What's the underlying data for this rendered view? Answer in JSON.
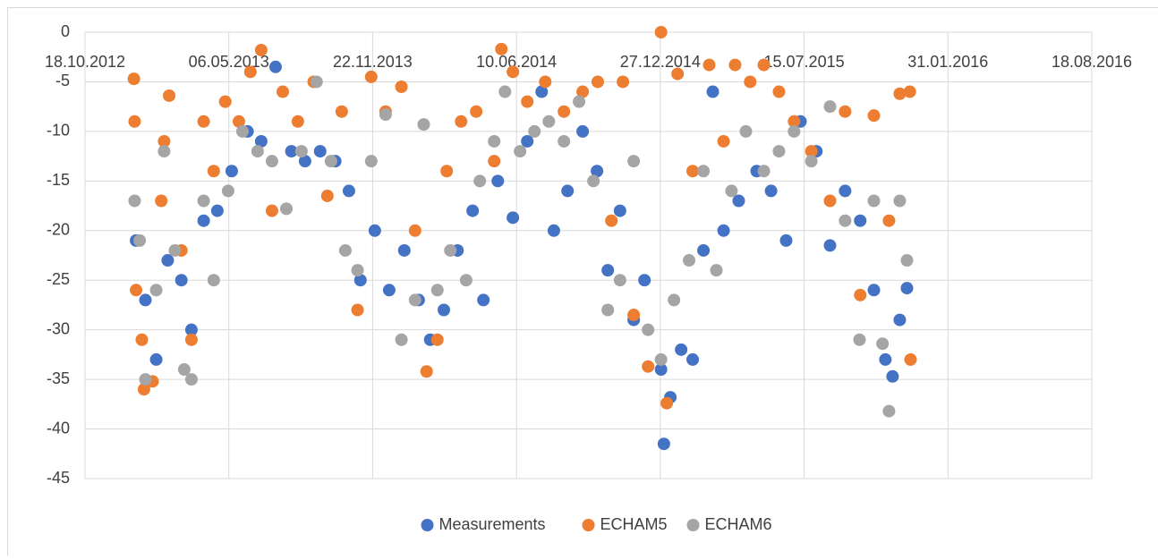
{
  "chart_data": {
    "type": "scatter",
    "xlim": [
      "2012-10-18",
      "2016-08-18"
    ],
    "xticks": [
      {
        "value": "2012-10-18",
        "label": "18.10.2012"
      },
      {
        "value": "2013-05-06",
        "label": "06.05.2013"
      },
      {
        "value": "2013-11-22",
        "label": "22.11.2013"
      },
      {
        "value": "2014-06-10",
        "label": "10.06.2014"
      },
      {
        "value": "2014-12-27",
        "label": "27.12.2014"
      },
      {
        "value": "2015-07-15",
        "label": "15.07.2015"
      },
      {
        "value": "2016-01-31",
        "label": "31.01.2016"
      },
      {
        "value": "2016-08-18",
        "label": "18.08.2016"
      }
    ],
    "ylim": [
      -45,
      0
    ],
    "yticks": [
      0,
      -5,
      -10,
      -15,
      -20,
      -25,
      -30,
      -35,
      -40,
      -45
    ],
    "grid": true,
    "legend": "bottom",
    "series": [
      {
        "name": "Measurements",
        "color": "#4472c4",
        "x": [
          "2012-12-28",
          "2013-01-10",
          "2013-01-25",
          "2013-02-10",
          "2013-03-01",
          "2013-03-15",
          "2013-04-01",
          "2013-04-20",
          "2013-05-10",
          "2013-06-01",
          "2013-06-20",
          "2013-07-10",
          "2013-08-01",
          "2013-08-20",
          "2013-09-10",
          "2013-10-01",
          "2013-10-20",
          "2013-11-05",
          "2013-11-25",
          "2013-12-15",
          "2014-01-05",
          "2014-01-25",
          "2014-02-10",
          "2014-03-01",
          "2014-03-20",
          "2014-04-10",
          "2014-04-25",
          "2014-05-15",
          "2014-06-05",
          "2014-06-25",
          "2014-07-15",
          "2014-08-01",
          "2014-08-20",
          "2014-09-10",
          "2014-09-30",
          "2014-10-15",
          "2014-11-01",
          "2014-11-20",
          "2014-12-05",
          "2014-12-28",
          "2015-01-01",
          "2015-01-10",
          "2015-01-25",
          "2015-02-10",
          "2015-02-25",
          "2015-03-10",
          "2015-03-25",
          "2015-04-15",
          "2015-05-10",
          "2015-05-30",
          "2015-06-20",
          "2015-07-10",
          "2015-08-01",
          "2015-08-20",
          "2015-09-10",
          "2015-10-01",
          "2015-10-20",
          "2015-11-05",
          "2015-11-15",
          "2015-11-25",
          "2015-12-05"
        ],
        "values": [
          -21,
          -27,
          -33,
          -23,
          -25,
          -30,
          -19,
          -18,
          -14,
          -10,
          -11,
          -3.5,
          -12,
          -13,
          -12,
          -13,
          -16,
          -25,
          -20,
          -26,
          -22,
          -27,
          -31,
          -28,
          -22,
          -18,
          -27,
          -15,
          -18.7,
          -11,
          -6,
          -20,
          -16,
          -10,
          -14,
          -24,
          -18,
          -29,
          -25,
          -34,
          -41.5,
          -36.8,
          -32,
          -33,
          -22,
          -6,
          -20,
          -17,
          -14,
          -16,
          -21,
          -9,
          -12,
          -21.5,
          -16,
          -19,
          -26,
          -33,
          -34.7,
          -29,
          -25.8
        ]
      },
      {
        "name": "ECHAM5",
        "color": "#ed7d31",
        "x": [
          "2012-12-25",
          "2012-12-26",
          "2012-12-28",
          "2013-01-05",
          "2013-01-08",
          "2013-01-20",
          "2013-02-01",
          "2013-02-05",
          "2013-02-12",
          "2013-03-01",
          "2013-03-15",
          "2013-04-01",
          "2013-04-15",
          "2013-05-01",
          "2013-05-20",
          "2013-06-05",
          "2013-06-20",
          "2013-07-05",
          "2013-07-20",
          "2013-08-10",
          "2013-09-01",
          "2013-09-20",
          "2013-10-10",
          "2013-11-01",
          "2013-11-20",
          "2013-12-10",
          "2014-01-01",
          "2014-01-20",
          "2014-02-05",
          "2014-02-20",
          "2014-03-05",
          "2014-03-25",
          "2014-04-15",
          "2014-05-10",
          "2014-05-20",
          "2014-06-05",
          "2014-06-25",
          "2014-07-20",
          "2014-08-15",
          "2014-09-10",
          "2014-10-01",
          "2014-10-20",
          "2014-11-05",
          "2014-11-20",
          "2014-12-10",
          "2014-12-28",
          "2015-01-05",
          "2015-01-20",
          "2015-02-10",
          "2015-03-05",
          "2015-03-25",
          "2015-04-10",
          "2015-05-01",
          "2015-05-20",
          "2015-06-10",
          "2015-07-01",
          "2015-07-25",
          "2015-08-20",
          "2015-09-10",
          "2015-10-01",
          "2015-10-20",
          "2015-11-10",
          "2015-11-25",
          "2015-12-09",
          "2015-12-10"
        ],
        "values": [
          -4.7,
          -9,
          -26,
          -31,
          -36,
          -35.2,
          -17,
          -11,
          -6.4,
          -22,
          -31,
          -9,
          -14,
          -7,
          -9,
          -4,
          -1.8,
          -18,
          -6,
          -9,
          -5,
          -16.5,
          -8,
          -28,
          -4.5,
          -8,
          -5.5,
          -20,
          -34.2,
          -31,
          -14,
          -9,
          -8,
          -13,
          -1.7,
          -4,
          -7,
          -5,
          -8,
          -6,
          -5,
          -19,
          -5,
          -28.5,
          -33.7,
          0,
          -37.4,
          -4.2,
          -14,
          -3.3,
          -11,
          -3.3,
          -5,
          -3.3,
          -6,
          -9,
          -12,
          -17,
          -8,
          -26.5,
          -8.4,
          -19,
          -6.2,
          -6,
          -33
        ]
      },
      {
        "name": "ECHAM6",
        "color": "#a5a5a5",
        "x": [
          "2012-12-26",
          "2013-01-02",
          "2013-01-10",
          "2013-01-25",
          "2013-02-05",
          "2013-02-20",
          "2013-03-05",
          "2013-03-15",
          "2013-04-01",
          "2013-04-15",
          "2013-05-05",
          "2013-05-25",
          "2013-06-15",
          "2013-07-05",
          "2013-07-25",
          "2013-08-15",
          "2013-09-05",
          "2013-09-25",
          "2013-10-15",
          "2013-11-01",
          "2013-11-20",
          "2013-12-10",
          "2014-01-01",
          "2014-01-20",
          "2014-02-01",
          "2014-02-20",
          "2014-03-10",
          "2014-04-01",
          "2014-04-20",
          "2014-05-10",
          "2014-05-25",
          "2014-06-15",
          "2014-07-05",
          "2014-07-25",
          "2014-08-15",
          "2014-09-05",
          "2014-09-25",
          "2014-10-15",
          "2014-11-01",
          "2014-11-20",
          "2014-12-10",
          "2014-12-28",
          "2015-01-15",
          "2015-02-05",
          "2015-02-25",
          "2015-03-15",
          "2015-04-05",
          "2015-04-25",
          "2015-05-20",
          "2015-06-10",
          "2015-07-01",
          "2015-07-25",
          "2015-08-20",
          "2015-09-10",
          "2015-09-30",
          "2015-10-20",
          "2015-11-01",
          "2015-11-10",
          "2015-11-25",
          "2015-12-05"
        ],
        "values": [
          -17,
          -21,
          -35,
          -26,
          -12,
          -22,
          -34,
          -35,
          -17,
          -25,
          -16,
          -10,
          -12,
          -13,
          -17.8,
          -12,
          -5,
          -13,
          -22,
          -24,
          -13,
          -8.3,
          -31,
          -27,
          -9.3,
          -26,
          -22,
          -25,
          -15,
          -11,
          -6,
          -12,
          -10,
          -9,
          -11,
          -7,
          -15,
          -28,
          -25,
          -13,
          -30,
          -33,
          -27,
          -23,
          -14,
          -24,
          -16,
          -10,
          -14,
          -12,
          -10,
          -13,
          -7.5,
          -19,
          -31,
          -17,
          -31.4,
          -38.2,
          -17,
          -23
        ]
      }
    ]
  }
}
